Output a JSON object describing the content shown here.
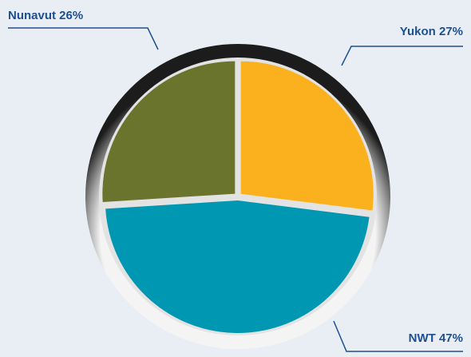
{
  "chart_data": {
    "type": "pie",
    "categories": [
      "Yukon",
      "NWT",
      "Nunavut"
    ],
    "values": [
      27,
      47,
      26
    ],
    "value_labels": [
      "27%",
      "47%",
      "26%"
    ],
    "colors": [
      "#fbb11d",
      "#0097b2",
      "#6b742c"
    ]
  }
}
